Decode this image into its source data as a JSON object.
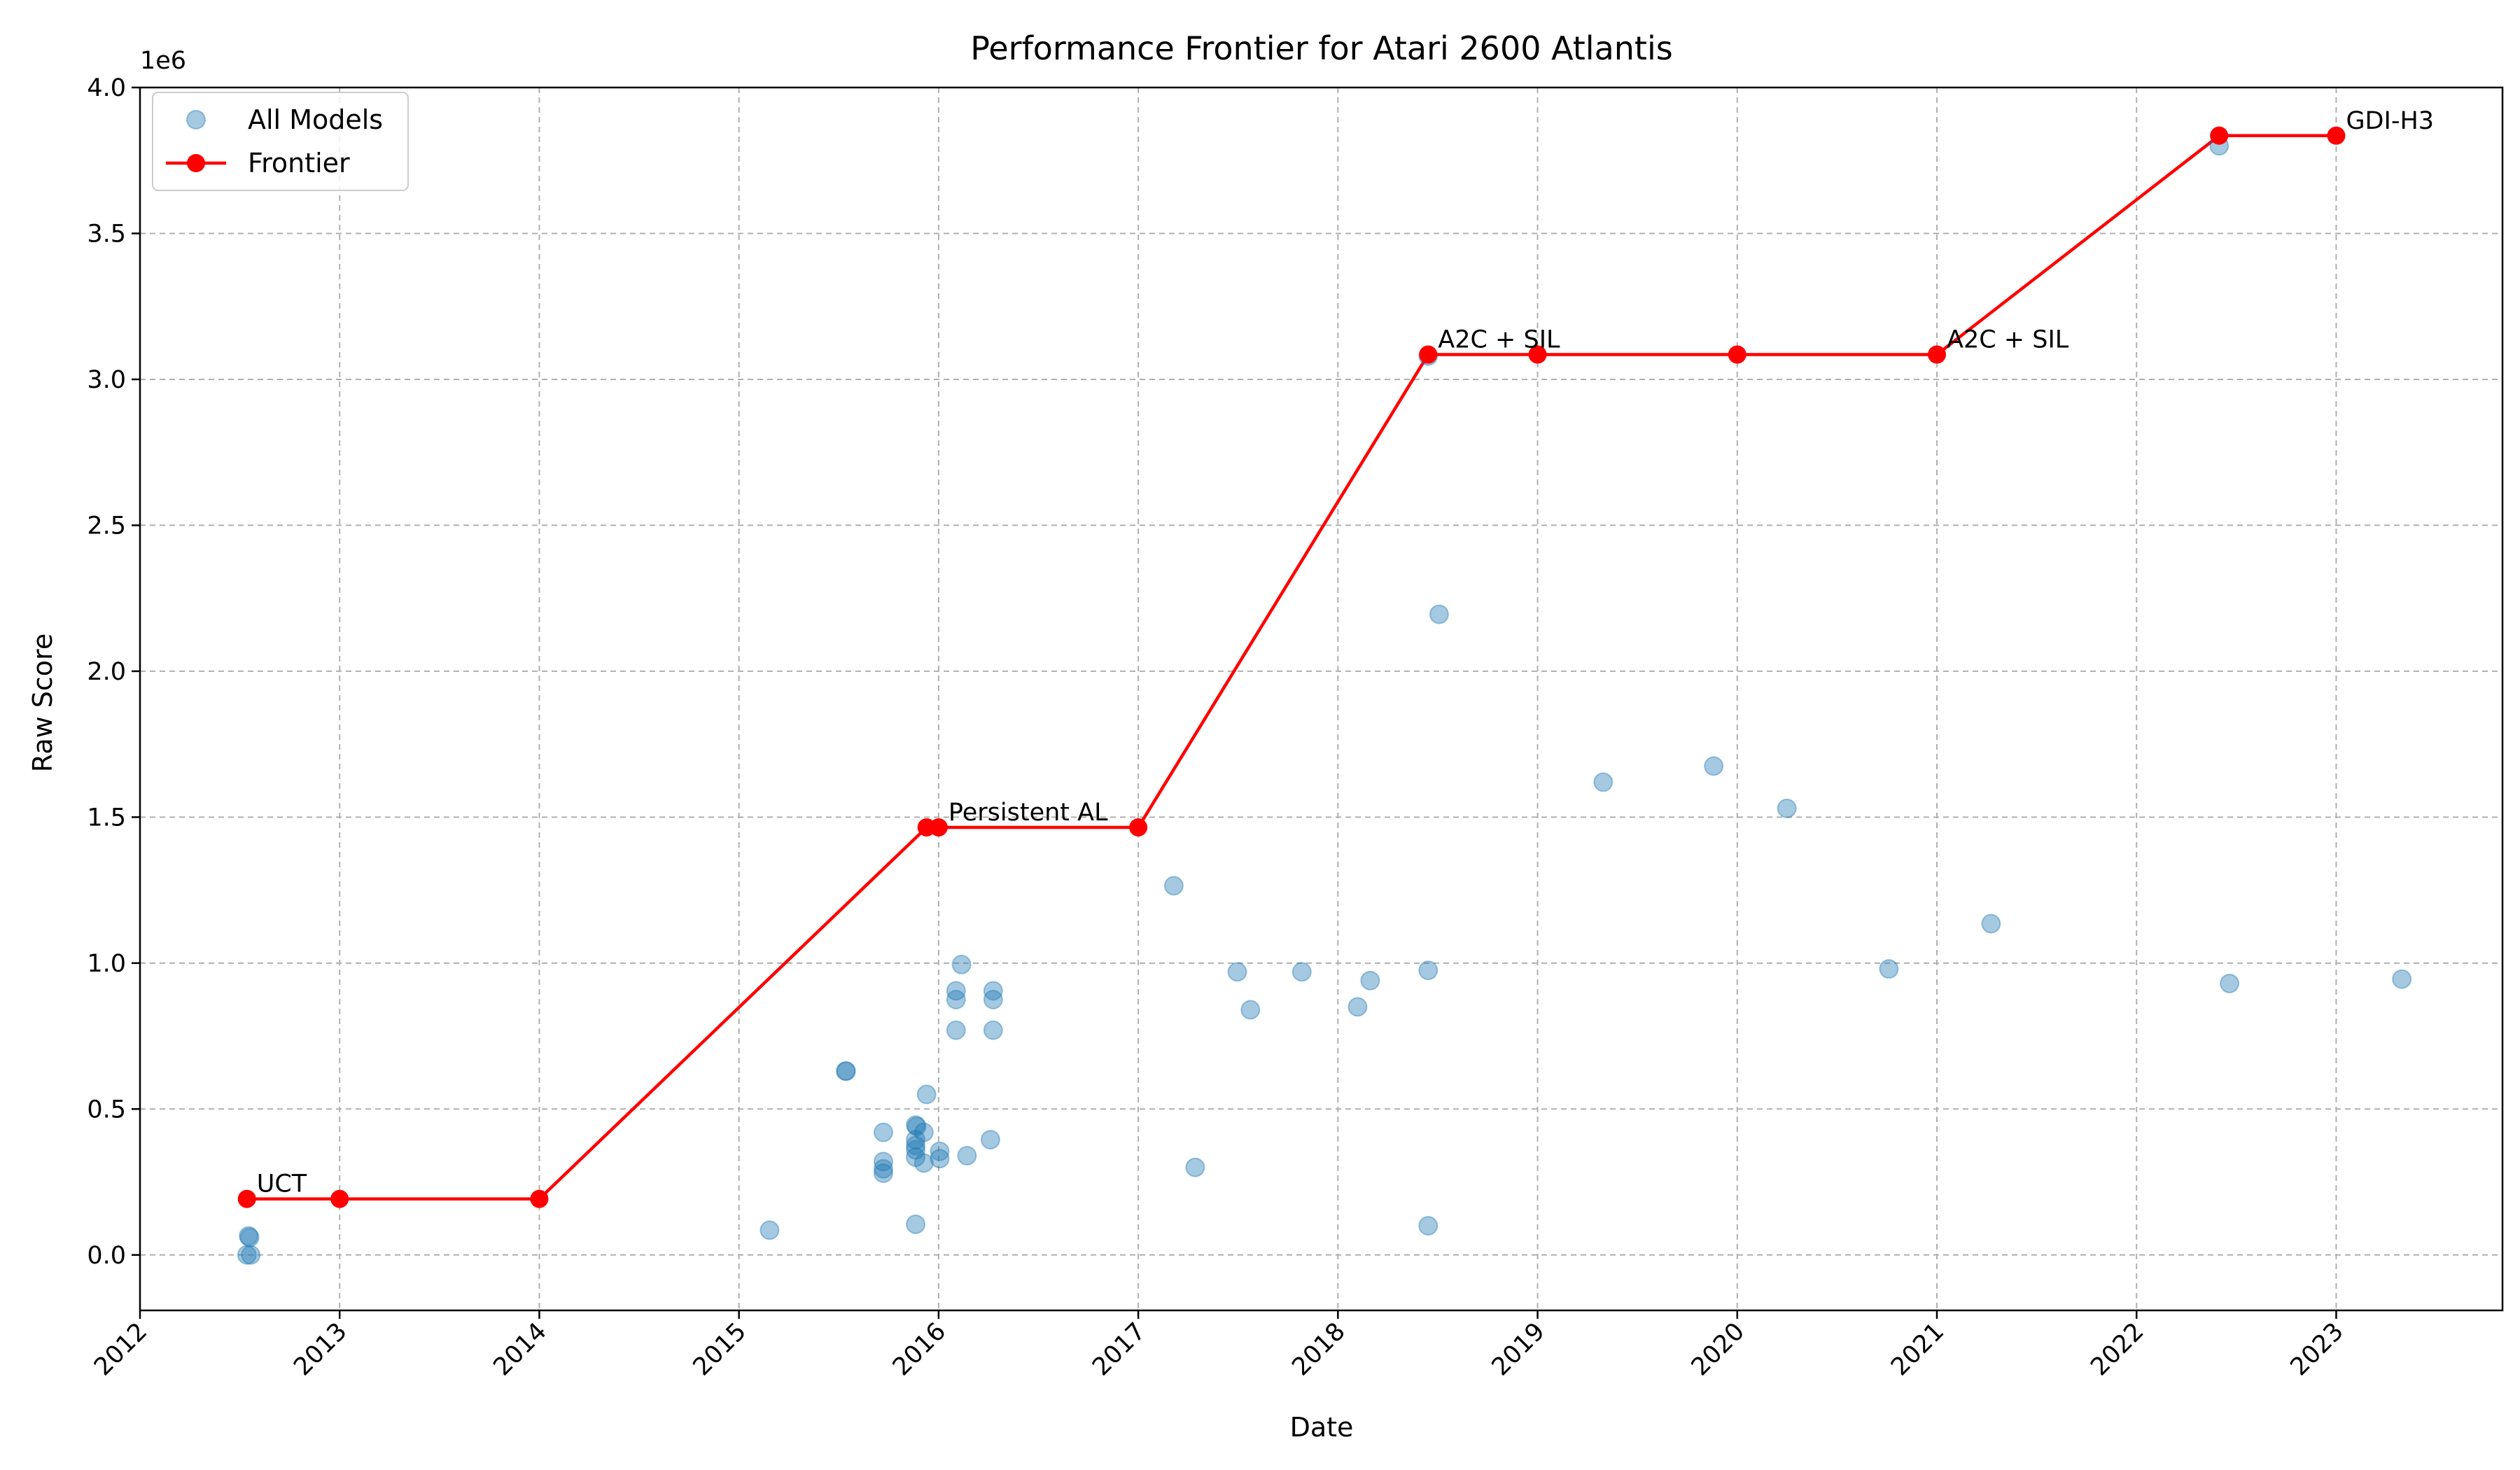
{
  "chart_data": {
    "type": "scatter",
    "title": "Performance Frontier for Atari 2600 Atlantis",
    "xlabel": "Date",
    "ylabel": "Raw Score",
    "y_multiplier_label": "1e6",
    "xlim": [
      "2012-01-01",
      "2023-11-01"
    ],
    "ylim": [
      -0.19,
      4.0
    ],
    "x_ticks": [
      "2012",
      "2013",
      "2014",
      "2015",
      "2016",
      "2017",
      "2018",
      "2019",
      "2020",
      "2021",
      "2022",
      "2023"
    ],
    "y_ticks": [
      "0.0",
      "0.5",
      "1.0",
      "1.5",
      "2.0",
      "2.5",
      "3.0",
      "3.5",
      "4.0"
    ],
    "grid": true,
    "legend_position": "upper-left",
    "colors": {
      "all_models": "#1f77b4",
      "frontier": "#ff0000",
      "grid": "#b0b0b0"
    },
    "series": [
      {
        "name": "All Models",
        "kind": "scatter",
        "points": [
          {
            "x": "2012-07-15",
            "y": 0.0
          },
          {
            "x": "2012-07-20",
            "y": 0.06
          },
          {
            "x": "2012-07-22",
            "y": 0.0
          },
          {
            "x": "2012-07-18",
            "y": 0.065
          },
          {
            "x": "2015-02-26",
            "y": 0.085
          },
          {
            "x": "2015-07-15",
            "y": 0.63
          },
          {
            "x": "2015-07-16",
            "y": 0.63
          },
          {
            "x": "2015-09-22",
            "y": 0.42
          },
          {
            "x": "2015-09-22",
            "y": 0.32
          },
          {
            "x": "2015-09-22",
            "y": 0.295
          },
          {
            "x": "2015-09-22",
            "y": 0.28
          },
          {
            "x": "2015-11-20",
            "y": 0.445
          },
          {
            "x": "2015-11-20",
            "y": 0.395
          },
          {
            "x": "2015-11-20",
            "y": 0.375
          },
          {
            "x": "2015-11-20",
            "y": 0.36
          },
          {
            "x": "2015-11-20",
            "y": 0.335
          },
          {
            "x": "2015-11-20",
            "y": 0.105
          },
          {
            "x": "2015-11-22",
            "y": 0.44
          },
          {
            "x": "2015-12-05",
            "y": 0.42
          },
          {
            "x": "2015-12-05",
            "y": 0.315
          },
          {
            "x": "2015-12-10",
            "y": 0.55
          },
          {
            "x": "2016-01-03",
            "y": 0.355
          },
          {
            "x": "2016-01-03",
            "y": 0.33
          },
          {
            "x": "2016-02-02",
            "y": 0.905
          },
          {
            "x": "2016-02-02",
            "y": 0.875
          },
          {
            "x": "2016-02-02",
            "y": 0.77
          },
          {
            "x": "2016-02-12",
            "y": 0.995
          },
          {
            "x": "2016-02-22",
            "y": 0.34
          },
          {
            "x": "2016-04-10",
            "y": 0.905
          },
          {
            "x": "2016-04-10",
            "y": 0.875
          },
          {
            "x": "2016-04-10",
            "y": 0.77
          },
          {
            "x": "2016-04-05",
            "y": 0.395
          },
          {
            "x": "2017-03-07",
            "y": 1.265
          },
          {
            "x": "2017-04-15",
            "y": 0.3
          },
          {
            "x": "2017-07-01",
            "y": 0.97
          },
          {
            "x": "2017-07-25",
            "y": 0.84
          },
          {
            "x": "2017-10-27",
            "y": 0.97
          },
          {
            "x": "2018-02-06",
            "y": 0.85
          },
          {
            "x": "2018-03-01",
            "y": 0.94
          },
          {
            "x": "2018-06-15",
            "y": 0.975
          },
          {
            "x": "2018-06-15",
            "y": 0.1
          },
          {
            "x": "2018-07-05",
            "y": 2.195
          },
          {
            "x": "2018-06-15",
            "y": 3.08
          },
          {
            "x": "2019-05-01",
            "y": 1.62
          },
          {
            "x": "2019-11-19",
            "y": 1.675
          },
          {
            "x": "2020-04-01",
            "y": 1.53
          },
          {
            "x": "2020-10-05",
            "y": 0.98
          },
          {
            "x": "2021-04-10",
            "y": 1.135
          },
          {
            "x": "2022-06-01",
            "y": 3.8
          },
          {
            "x": "2022-06-20",
            "y": 0.93
          },
          {
            "x": "2023-05-01",
            "y": 0.945
          }
        ]
      },
      {
        "name": "Frontier",
        "kind": "line",
        "points": [
          {
            "x": "2012-07-15",
            "y": 0.192
          },
          {
            "x": "2013-01-01",
            "y": 0.192
          },
          {
            "x": "2014-01-01",
            "y": 0.192
          },
          {
            "x": "2015-12-10",
            "y": 1.465
          },
          {
            "x": "2016-01-01",
            "y": 1.465
          },
          {
            "x": "2017-01-01",
            "y": 1.465
          },
          {
            "x": "2018-06-15",
            "y": 3.085
          },
          {
            "x": "2019-01-01",
            "y": 3.085
          },
          {
            "x": "2020-01-01",
            "y": 3.085
          },
          {
            "x": "2021-01-01",
            "y": 3.085
          },
          {
            "x": "2022-06-01",
            "y": 3.835
          },
          {
            "x": "2023-01-01",
            "y": 3.835
          }
        ]
      }
    ],
    "annotations": [
      {
        "text": "UCT",
        "x": "2012-07-15",
        "y": 0.192
      },
      {
        "text": "Persistent AL",
        "x": "2016-01-01",
        "y": 1.465
      },
      {
        "text": "A2C + SIL",
        "x": "2018-06-15",
        "y": 3.085
      },
      {
        "text": "A2C + SIL",
        "x": "2021-01-01",
        "y": 3.085
      },
      {
        "text": "GDI-H3",
        "x": "2023-01-01",
        "y": 3.835
      }
    ]
  }
}
